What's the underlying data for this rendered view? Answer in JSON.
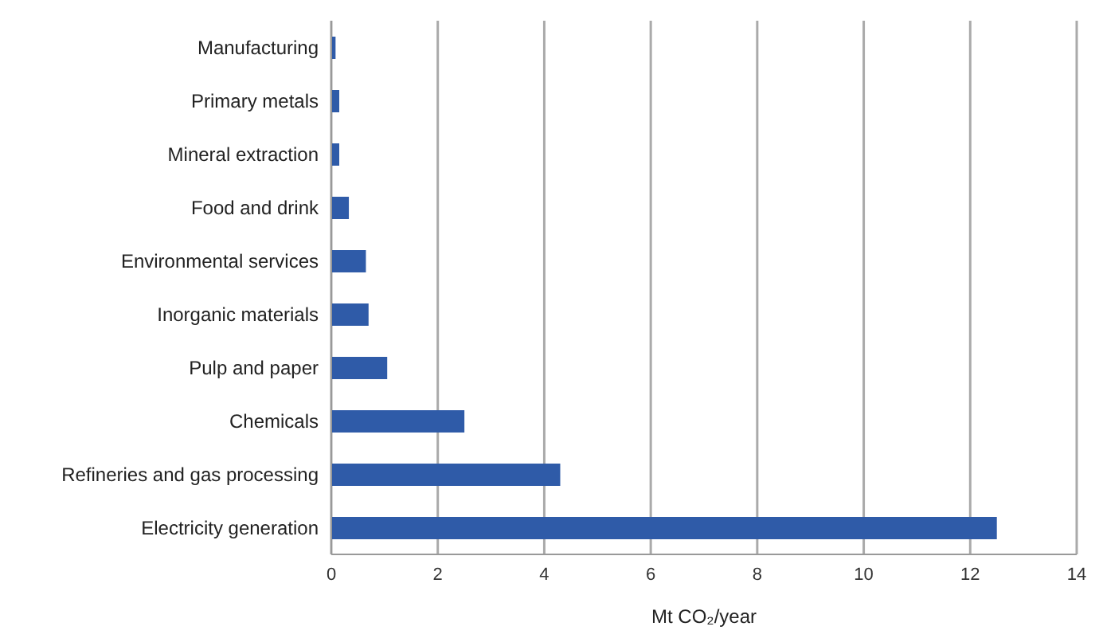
{
  "chart_data": {
    "type": "bar",
    "orientation": "horizontal",
    "xlabel": "Mt CO₂/year",
    "categories": [
      "Manufacturing",
      "Primary metals",
      "Mineral extraction",
      "Food and drink",
      "Environmental services",
      "Inorganic materials",
      "Pulp and paper",
      "Chemicals",
      "Refineries and gas processing",
      "Electricity generation"
    ],
    "values": [
      0.08,
      0.15,
      0.15,
      0.33,
      0.65,
      0.7,
      1.05,
      2.5,
      4.3,
      12.5
    ],
    "color": "#2f5ba8",
    "xlim": [
      0,
      14
    ],
    "xticks": [
      0,
      2,
      4,
      6,
      8,
      10,
      12,
      14
    ],
    "grid": "x"
  }
}
